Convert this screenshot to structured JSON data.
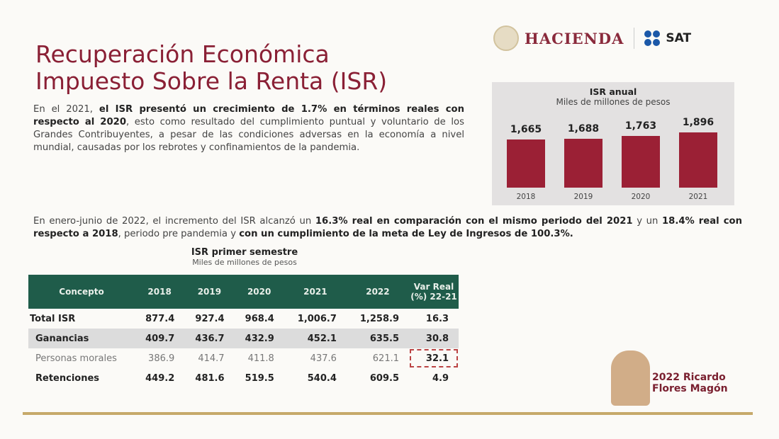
{
  "title": [
    "Recuperación Económica",
    "Impuesto Sobre la Renta (ISR)"
  ],
  "logos": {
    "hacienda": "HACIENDA",
    "sat": "SAT",
    "footer": "2022 Ricardo Flores Magón"
  },
  "para1": {
    "a": "En el 2021, ",
    "b": "el ISR presentó un crecimiento de 1.7% en términos reales con respecto al 2020",
    "c": ", esto como resultado del cumplimiento puntual y voluntario de los Grandes Contribuyentes, a pesar de las condiciones adversas en la economía a nivel mundial, causadas por los rebrotes y confinamientos de la pandemia."
  },
  "para2": {
    "a": "En enero-junio de 2022, el incremento del ISR alcanzó un ",
    "b": "16.3% real en comparación con el mismo periodo del 2021",
    "c": " y un ",
    "d": "18.4% real con respecto a 2018",
    "e": ", periodo pre pandemia y ",
    "f": "con un cumplimiento de la meta de Ley de Ingresos de 100.3%."
  },
  "chart_data": {
    "type": "bar",
    "title": "ISR anual",
    "subtitle": "Miles de millones de pesos",
    "categories": [
      "2018",
      "2019",
      "2020",
      "2021"
    ],
    "values": [
      1665,
      1688,
      1763,
      1896
    ],
    "labels": [
      "1,665",
      "1,688",
      "1,763",
      "1,896"
    ],
    "color": "#9b2035",
    "ylim": [
      0,
      1896
    ]
  },
  "table": {
    "title": "ISR primer semestre",
    "subtitle": "Miles de millones de pesos",
    "headers": [
      "Concepto",
      "2018",
      "2019",
      "2020",
      "2021",
      "2022",
      "Var Real (%) 22-21"
    ],
    "rows": [
      [
        "Total ISR",
        "877.4",
        "927.4",
        "968.4",
        "1,006.7",
        "1,258.9",
        "16.3"
      ],
      [
        "Ganancias",
        "409.7",
        "436.7",
        "432.9",
        "452.1",
        "635.5",
        "30.8"
      ],
      [
        "Personas morales",
        "386.9",
        "414.7",
        "411.8",
        "437.6",
        "621.1",
        "32.1"
      ],
      [
        "Retenciones",
        "449.2",
        "481.6",
        "519.5",
        "540.4",
        "609.5",
        "4.9"
      ]
    ]
  }
}
